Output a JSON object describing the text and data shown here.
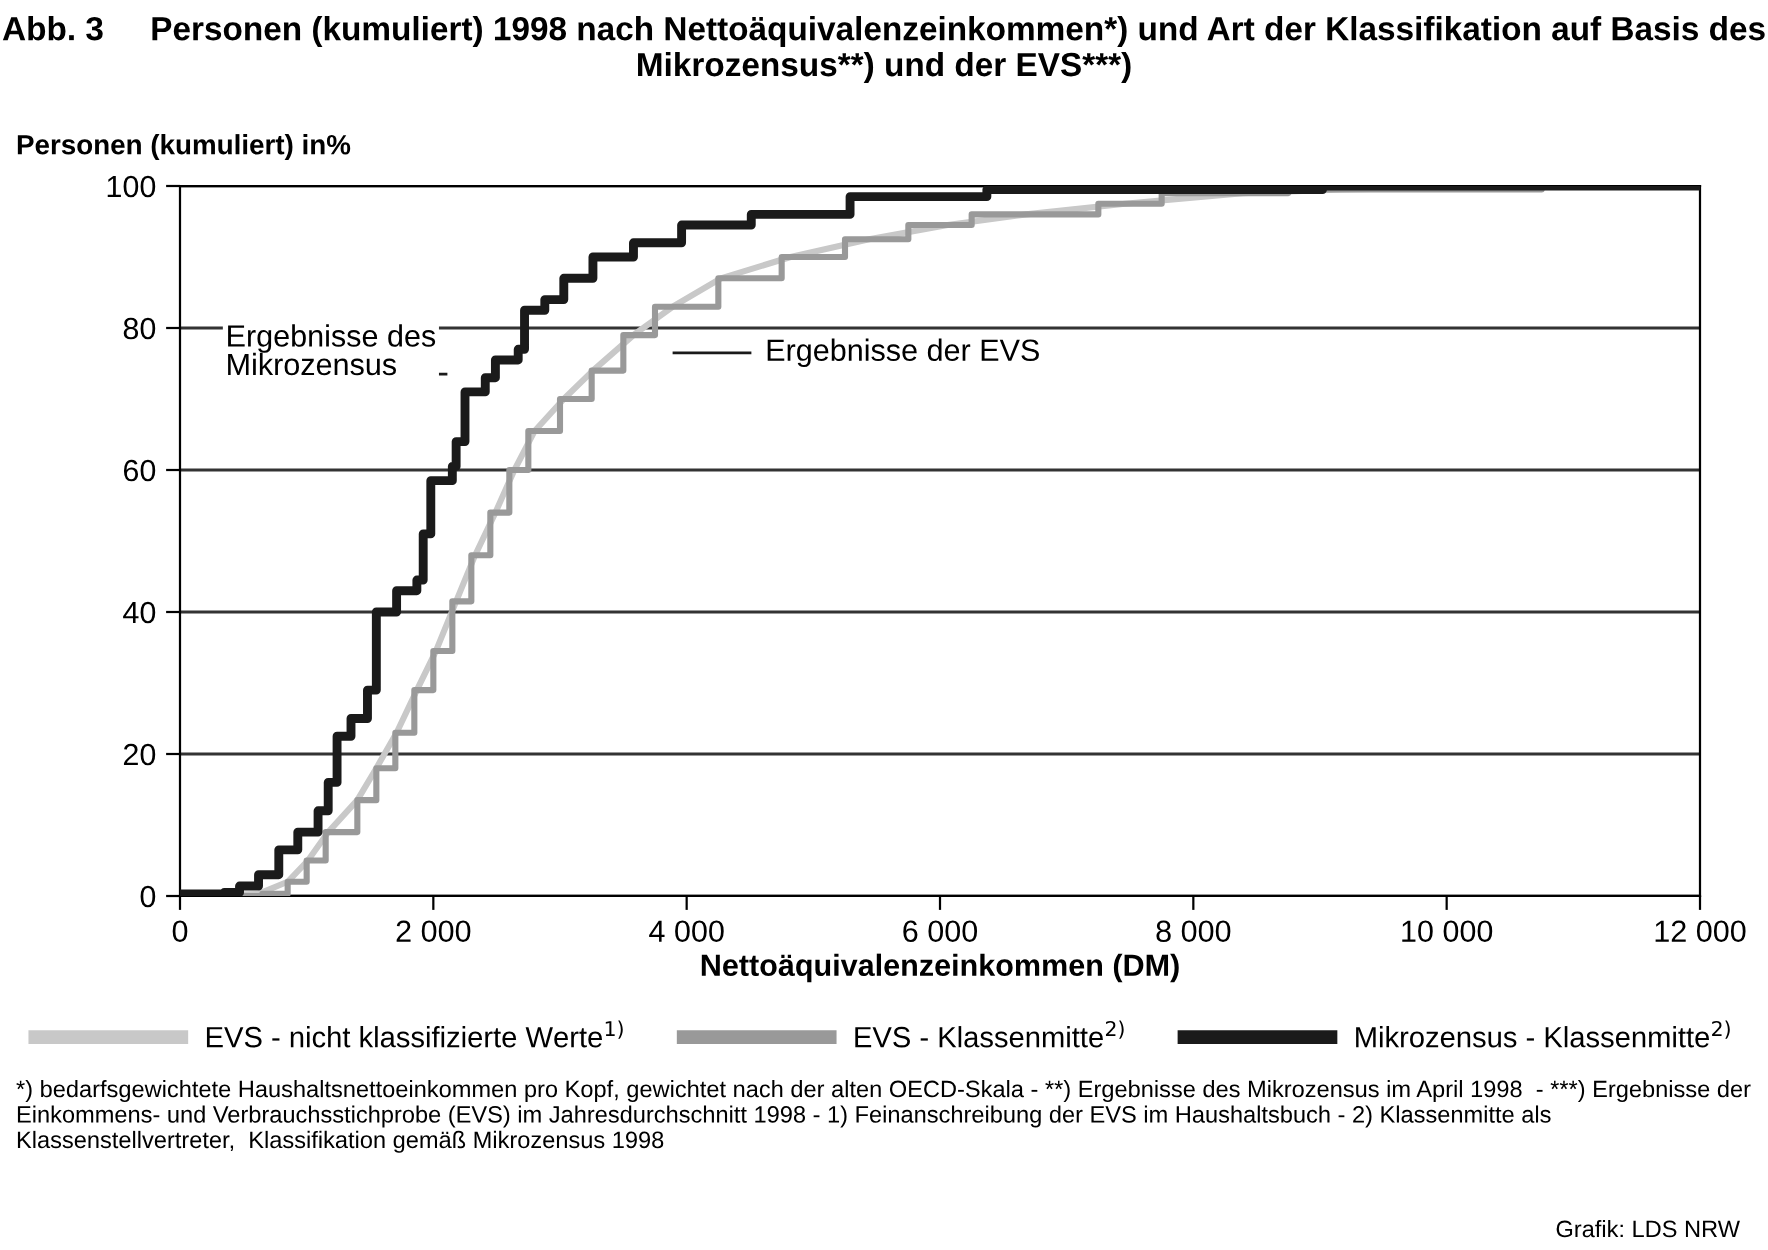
{
  "chart_data": {
    "type": "line",
    "title": "Abb. 3     Personen (kumuliert) 1998 nach Nettoäquivalenzeinkommen*) und Art der Klassifikation auf Basis des Mikrozensus**) und der EVS***)",
    "ylabel": "Personen (kumuliert) in%",
    "xlabel": "Nettoäquivalenzeinkommen (DM)",
    "xlim": [
      0,
      12000
    ],
    "xticks": [
      0,
      {
        "value": 2000,
        "label": "2 000"
      },
      {
        "value": 4000,
        "label": "4 000"
      },
      {
        "value": 6000,
        "label": "6 000"
      },
      {
        "value": 8000,
        "label": "8 000"
      },
      {
        "value": 10000,
        "label": "10 000"
      },
      {
        "value": 12000,
        "label": "12 000"
      }
    ],
    "ylim": [
      0,
      100
    ],
    "yticks": [
      0,
      20,
      40,
      60,
      80,
      100
    ],
    "grid": "y",
    "legend": "bottom",
    "series": [
      {
        "name": "EVS - nicht klassifizierte Werte$^{1)}$",
        "color": "#c8c8c8",
        "x": [
          0,
          620,
          850,
          1010,
          1170,
          1400,
          1550,
          1710,
          1870,
          2020,
          2180,
          2330,
          2490,
          2640,
          2800,
          3030,
          3260,
          3580,
          3890,
          4270,
          4820,
          5440,
          6060,
          6680,
          7460,
          8390,
          9170,
          10880,
          12000
        ],
        "values": [
          0,
          0.3,
          2,
          5,
          9,
          13.5,
          18,
          23,
          29,
          34.5,
          41.5,
          48,
          54,
          60,
          65.5,
          70,
          74,
          79,
          83,
          87,
          90,
          92.5,
          94.5,
          96,
          97.5,
          99,
          99.5,
          100,
          100
        ]
      },
      {
        "name": "EVS - Klassenmitte$^{2)}$",
        "color": "#999999",
        "type": "step",
        "x": [
          0,
          650,
          850,
          1000,
          1150,
          1400,
          1550,
          1700,
          1850,
          2000,
          2150,
          2300,
          2450,
          2600,
          2750,
          3000,
          3250,
          3500,
          3750,
          4250,
          4750,
          5250,
          5750,
          6250,
          7250,
          7750,
          8750,
          10750,
          12000
        ],
        "values": [
          0,
          0.3,
          2,
          5,
          9,
          13.5,
          18,
          23,
          29,
          34.5,
          41.5,
          48,
          54,
          60,
          65.5,
          70,
          74,
          79,
          83,
          87,
          90,
          92.5,
          94.5,
          96,
          97.5,
          99,
          99.5,
          100,
          100
        ]
      },
      {
        "name": "Mikrozensus - Klassenmitte$^{2)}$",
        "color": "#1a1a1a",
        "type": "step",
        "x": [
          0,
          350,
          470,
          620,
          780,
          930,
          1090,
          1170,
          1240,
          1350,
          1480,
          1550,
          1710,
          1870,
          1920,
          1980,
          2150,
          2180,
          2250,
          2410,
          2490,
          2670,
          2720,
          2880,
          3030,
          3260,
          3580,
          3960,
          4510,
          5290,
          6370,
          9020,
          12000
        ],
        "values": [
          0.3,
          0.5,
          1.4,
          3,
          6.5,
          9,
          12,
          16,
          22.5,
          25,
          29,
          40,
          43,
          44.5,
          51,
          58.5,
          60.5,
          64,
          71,
          73,
          75.5,
          77,
          82.5,
          84,
          87,
          90,
          92,
          94.5,
          96,
          98.5,
          99.5,
          100,
          100
        ]
      }
    ],
    "annotations": [
      "Ergebnisse des\nMikrozensus",
      "Ergebnisse der EVS",
      "*) bedarfsgewichtete Haushaltsnettoeinkommen pro Kopf, gewichtet nach der alten OECD-Skala - **) Ergebnisse des Mikrozensus im April 1998  - ***) Ergebnisse der Einkommens- und Verbrauchsstichprobe (EVS) im Jahresdurchschnitt 1998 - 1) Feinanschreibung der EVS im Haushaltsbuch - 2) Klassenmitte als Klassenstellvertreter,  Klassifikation gemäß Mikrozensus 1998",
      "Grafik: LDS NRW"
    ]
  }
}
